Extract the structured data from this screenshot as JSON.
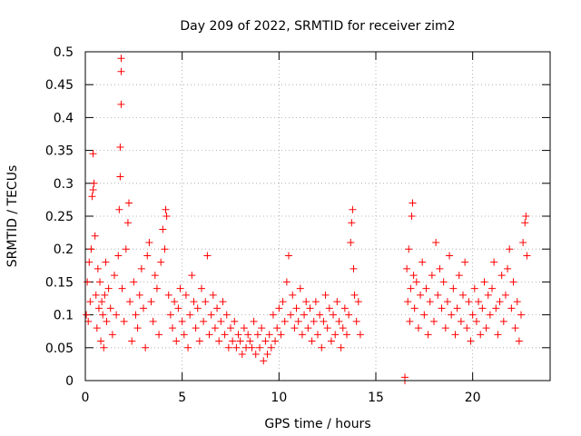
{
  "chart_data": {
    "type": "scatter",
    "title": "Day 209 of 2022, SRMTID for receiver zim2",
    "xlabel": "GPS time / hours",
    "ylabel": "SRMTID / TECUs",
    "xlim": [
      0,
      24
    ],
    "ylim": [
      0,
      0.5
    ],
    "xticks": [
      0,
      5,
      10,
      15,
      20
    ],
    "yticks": [
      0,
      0.05,
      0.1,
      0.15,
      0.2,
      0.25,
      0.3,
      0.35,
      0.4,
      0.45,
      0.5
    ],
    "grid": true,
    "marker": "+",
    "color": "#ff0000",
    "series": [
      {
        "name": "SRMTID",
        "points": [
          [
            0.05,
            0.1
          ],
          [
            0.1,
            0.15
          ],
          [
            0.15,
            0.09
          ],
          [
            0.2,
            0.18
          ],
          [
            0.25,
            0.12
          ],
          [
            0.3,
            0.2
          ],
          [
            0.35,
            0.28
          ],
          [
            0.4,
            0.29
          ],
          [
            0.4,
            0.345
          ],
          [
            0.45,
            0.3
          ],
          [
            0.5,
            0.22
          ],
          [
            0.55,
            0.13
          ],
          [
            0.6,
            0.08
          ],
          [
            0.65,
            0.17
          ],
          [
            0.7,
            0.11
          ],
          [
            0.75,
            0.15
          ],
          [
            0.8,
            0.06
          ],
          [
            0.85,
            0.12
          ],
          [
            0.9,
            0.1
          ],
          [
            0.95,
            0.05
          ],
          [
            1.0,
            0.13
          ],
          [
            1.05,
            0.18
          ],
          [
            1.1,
            0.09
          ],
          [
            1.2,
            0.14
          ],
          [
            1.3,
            0.11
          ],
          [
            1.4,
            0.07
          ],
          [
            1.5,
            0.16
          ],
          [
            1.6,
            0.1
          ],
          [
            1.7,
            0.19
          ],
          [
            1.75,
            0.26
          ],
          [
            1.8,
            0.31
          ],
          [
            1.8,
            0.355
          ],
          [
            1.85,
            0.42
          ],
          [
            1.85,
            0.47
          ],
          [
            1.85,
            0.49
          ],
          [
            1.9,
            0.14
          ],
          [
            2.0,
            0.09
          ],
          [
            2.1,
            0.2
          ],
          [
            2.2,
            0.24
          ],
          [
            2.25,
            0.27
          ],
          [
            2.3,
            0.12
          ],
          [
            2.4,
            0.06
          ],
          [
            2.5,
            0.15
          ],
          [
            2.6,
            0.1
          ],
          [
            2.7,
            0.08
          ],
          [
            2.8,
            0.13
          ],
          [
            2.9,
            0.17
          ],
          [
            3.0,
            0.11
          ],
          [
            3.1,
            0.05
          ],
          [
            3.2,
            0.19
          ],
          [
            3.3,
            0.21
          ],
          [
            3.4,
            0.12
          ],
          [
            3.5,
            0.09
          ],
          [
            3.6,
            0.16
          ],
          [
            3.7,
            0.14
          ],
          [
            3.8,
            0.07
          ],
          [
            3.9,
            0.18
          ],
          [
            4.0,
            0.23
          ],
          [
            4.1,
            0.2
          ],
          [
            4.15,
            0.26
          ],
          [
            4.2,
            0.25
          ],
          [
            4.3,
            0.13
          ],
          [
            4.4,
            0.1
          ],
          [
            4.5,
            0.08
          ],
          [
            4.6,
            0.12
          ],
          [
            4.7,
            0.06
          ],
          [
            4.8,
            0.11
          ],
          [
            4.9,
            0.14
          ],
          [
            5.0,
            0.09
          ],
          [
            5.1,
            0.07
          ],
          [
            5.2,
            0.13
          ],
          [
            5.3,
            0.05
          ],
          [
            5.4,
            0.1
          ],
          [
            5.5,
            0.16
          ],
          [
            5.6,
            0.12
          ],
          [
            5.7,
            0.08
          ],
          [
            5.8,
            0.11
          ],
          [
            5.9,
            0.06
          ],
          [
            6.0,
            0.14
          ],
          [
            6.1,
            0.09
          ],
          [
            6.2,
            0.12
          ],
          [
            6.3,
            0.19
          ],
          [
            6.4,
            0.07
          ],
          [
            6.5,
            0.1
          ],
          [
            6.6,
            0.13
          ],
          [
            6.7,
            0.08
          ],
          [
            6.8,
            0.11
          ],
          [
            6.9,
            0.06
          ],
          [
            7.0,
            0.09
          ],
          [
            7.1,
            0.12
          ],
          [
            7.2,
            0.07
          ],
          [
            7.3,
            0.1
          ],
          [
            7.4,
            0.05
          ],
          [
            7.5,
            0.08
          ],
          [
            7.6,
            0.06
          ],
          [
            7.7,
            0.09
          ],
          [
            7.8,
            0.05
          ],
          [
            7.9,
            0.07
          ],
          [
            8.0,
            0.06
          ],
          [
            8.1,
            0.04
          ],
          [
            8.2,
            0.08
          ],
          [
            8.3,
            0.05
          ],
          [
            8.4,
            0.07
          ],
          [
            8.5,
            0.06
          ],
          [
            8.6,
            0.05
          ],
          [
            8.7,
            0.09
          ],
          [
            8.8,
            0.04
          ],
          [
            8.9,
            0.07
          ],
          [
            9.0,
            0.05
          ],
          [
            9.1,
            0.08
          ],
          [
            9.2,
            0.03
          ],
          [
            9.3,
            0.06
          ],
          [
            9.4,
            0.04
          ],
          [
            9.5,
            0.07
          ],
          [
            9.6,
            0.05
          ],
          [
            9.7,
            0.1
          ],
          [
            9.8,
            0.06
          ],
          [
            9.9,
            0.08
          ],
          [
            10.0,
            0.11
          ],
          [
            10.1,
            0.07
          ],
          [
            10.2,
            0.12
          ],
          [
            10.3,
            0.09
          ],
          [
            10.4,
            0.15
          ],
          [
            10.5,
            0.19
          ],
          [
            10.6,
            0.1
          ],
          [
            10.7,
            0.13
          ],
          [
            10.8,
            0.08
          ],
          [
            10.9,
            0.11
          ],
          [
            11.0,
            0.09
          ],
          [
            11.1,
            0.14
          ],
          [
            11.2,
            0.07
          ],
          [
            11.3,
            0.1
          ],
          [
            11.4,
            0.12
          ],
          [
            11.5,
            0.08
          ],
          [
            11.6,
            0.11
          ],
          [
            11.7,
            0.06
          ],
          [
            11.8,
            0.09
          ],
          [
            11.9,
            0.12
          ],
          [
            12.0,
            0.07
          ],
          [
            12.1,
            0.1
          ],
          [
            12.2,
            0.05
          ],
          [
            12.3,
            0.09
          ],
          [
            12.4,
            0.13
          ],
          [
            12.5,
            0.08
          ],
          [
            12.6,
            0.11
          ],
          [
            12.7,
            0.06
          ],
          [
            12.8,
            0.1
          ],
          [
            12.9,
            0.07
          ],
          [
            13.0,
            0.12
          ],
          [
            13.1,
            0.09
          ],
          [
            13.2,
            0.05
          ],
          [
            13.3,
            0.08
          ],
          [
            13.4,
            0.11
          ],
          [
            13.5,
            0.07
          ],
          [
            13.6,
            0.1
          ],
          [
            13.7,
            0.21
          ],
          [
            13.75,
            0.24
          ],
          [
            13.8,
            0.26
          ],
          [
            13.85,
            0.17
          ],
          [
            13.9,
            0.13
          ],
          [
            14.0,
            0.09
          ],
          [
            14.1,
            0.12
          ],
          [
            14.2,
            0.07
          ],
          [
            16.5,
            0.0
          ],
          [
            16.5,
            0.005
          ],
          [
            16.6,
            0.17
          ],
          [
            16.65,
            0.12
          ],
          [
            16.7,
            0.2
          ],
          [
            16.75,
            0.09
          ],
          [
            16.8,
            0.14
          ],
          [
            16.85,
            0.25
          ],
          [
            16.9,
            0.27
          ],
          [
            16.95,
            0.16
          ],
          [
            17.0,
            0.11
          ],
          [
            17.1,
            0.15
          ],
          [
            17.2,
            0.08
          ],
          [
            17.3,
            0.13
          ],
          [
            17.4,
            0.18
          ],
          [
            17.5,
            0.1
          ],
          [
            17.6,
            0.14
          ],
          [
            17.7,
            0.07
          ],
          [
            17.8,
            0.12
          ],
          [
            17.9,
            0.16
          ],
          [
            18.0,
            0.09
          ],
          [
            18.1,
            0.21
          ],
          [
            18.2,
            0.13
          ],
          [
            18.3,
            0.17
          ],
          [
            18.4,
            0.11
          ],
          [
            18.5,
            0.15
          ],
          [
            18.6,
            0.08
          ],
          [
            18.7,
            0.12
          ],
          [
            18.8,
            0.19
          ],
          [
            18.9,
            0.1
          ],
          [
            19.0,
            0.14
          ],
          [
            19.1,
            0.07
          ],
          [
            19.2,
            0.11
          ],
          [
            19.3,
            0.16
          ],
          [
            19.4,
            0.09
          ],
          [
            19.5,
            0.13
          ],
          [
            19.6,
            0.18
          ],
          [
            19.7,
            0.08
          ],
          [
            19.8,
            0.12
          ],
          [
            19.9,
            0.06
          ],
          [
            20.0,
            0.1
          ],
          [
            20.1,
            0.14
          ],
          [
            20.2,
            0.09
          ],
          [
            20.3,
            0.12
          ],
          [
            20.4,
            0.07
          ],
          [
            20.5,
            0.11
          ],
          [
            20.6,
            0.15
          ],
          [
            20.7,
            0.08
          ],
          [
            20.8,
            0.13
          ],
          [
            20.9,
            0.1
          ],
          [
            21.0,
            0.14
          ],
          [
            21.1,
            0.18
          ],
          [
            21.2,
            0.11
          ],
          [
            21.3,
            0.07
          ],
          [
            21.4,
            0.12
          ],
          [
            21.5,
            0.16
          ],
          [
            21.6,
            0.09
          ],
          [
            21.7,
            0.13
          ],
          [
            21.8,
            0.17
          ],
          [
            21.9,
            0.2
          ],
          [
            22.0,
            0.11
          ],
          [
            22.1,
            0.15
          ],
          [
            22.2,
            0.08
          ],
          [
            22.3,
            0.12
          ],
          [
            22.4,
            0.06
          ],
          [
            22.5,
            0.1
          ],
          [
            22.6,
            0.21
          ],
          [
            22.7,
            0.24
          ],
          [
            22.75,
            0.25
          ],
          [
            22.8,
            0.19
          ]
        ]
      }
    ]
  }
}
